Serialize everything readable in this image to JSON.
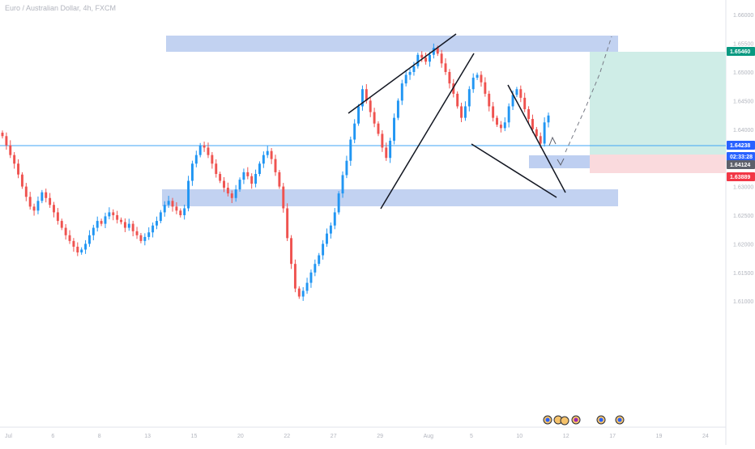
{
  "symbol_header": "Euro / Australian Dollar, 4h, FXCM",
  "chart_data": {
    "type": "candlestick",
    "title": "Euro / Australian Dollar, 4h, FXCM",
    "xlabel": "",
    "ylabel": "",
    "ylim": [
      1.588,
      1.662
    ],
    "x_ticks": [
      "Jul",
      "6",
      "8",
      "13",
      "15",
      "20",
      "22",
      "27",
      "29",
      "Aug",
      "5",
      "10",
      "12",
      "17",
      "19",
      "24"
    ],
    "y_ticks": [
      {
        "value": 1.66,
        "label": "1.66000"
      },
      {
        "value": 1.655,
        "label": "1.65500"
      },
      {
        "value": 1.65,
        "label": "1.65000"
      },
      {
        "value": 1.645,
        "label": "1.64500"
      },
      {
        "value": 1.64,
        "label": "1.64000"
      },
      {
        "value": 1.635,
        "label": "1.63500"
      },
      {
        "value": 1.63,
        "label": "1.63000"
      },
      {
        "value": 1.625,
        "label": "1.62500"
      },
      {
        "value": 1.62,
        "label": "1.62000"
      },
      {
        "value": 1.615,
        "label": "1.61500"
      },
      {
        "value": 1.61,
        "label": "1.61000"
      }
    ],
    "price_labels": [
      {
        "label": "1.65460",
        "color": "#089981",
        "value": 1.6546
      },
      {
        "label": "1.64238",
        "color": "#2962ff",
        "value": 1.64238
      },
      {
        "label": "02:33:28",
        "color": "#2962ff",
        "value": 1.6412
      },
      {
        "label": "1.64124",
        "color": "#5d606b",
        "value": 1.64124
      },
      {
        "label": "1.63889",
        "color": "#f23645",
        "value": 1.63889
      }
    ],
    "close_series": [
      1.6388,
      1.6372,
      1.6355,
      1.634,
      1.6321,
      1.63,
      1.6282,
      1.6265,
      1.6258,
      1.6275,
      1.629,
      1.628,
      1.6268,
      1.6255,
      1.624,
      1.6228,
      1.6215,
      1.6205,
      1.6195,
      1.6185,
      1.619,
      1.62,
      1.6215,
      1.6228,
      1.624,
      1.6235,
      1.6248,
      1.6255,
      1.625,
      1.6242,
      1.6238,
      1.6228,
      1.6235,
      1.6222,
      1.6215,
      1.6205,
      1.6212,
      1.622,
      1.6232,
      1.624,
      1.6255,
      1.6268,
      1.6275,
      1.6265,
      1.6258,
      1.625,
      1.6262,
      1.631,
      1.634,
      1.6355,
      1.6372,
      1.6368,
      1.6355,
      1.634,
      1.6322,
      1.631,
      1.6298,
      1.6288,
      1.628,
      1.6295,
      1.6312,
      1.6325,
      1.6318,
      1.6305,
      1.6322,
      1.634,
      1.6355,
      1.6362,
      1.6348,
      1.6325,
      1.63,
      1.6262,
      1.621,
      1.6165,
      1.6122,
      1.6108,
      1.6118,
      1.6132,
      1.615,
      1.6165,
      1.618,
      1.62,
      1.6218,
      1.6232,
      1.6255,
      1.6288,
      1.632,
      1.6345,
      1.6382,
      1.641,
      1.644,
      1.647,
      1.645,
      1.643,
      1.641,
      1.6392,
      1.6368,
      1.635,
      1.638,
      1.642,
      1.645,
      1.648,
      1.6495,
      1.65,
      1.651,
      1.653,
      1.6525,
      1.6518,
      1.653,
      1.6542,
      1.6532,
      1.6515,
      1.65,
      1.648,
      1.6462,
      1.644,
      1.642,
      1.644,
      1.647,
      1.649,
      1.6495,
      1.6482,
      1.6462,
      1.644,
      1.642,
      1.6408,
      1.6402,
      1.6412,
      1.644,
      1.646,
      1.647,
      1.6455,
      1.6435,
      1.6418,
      1.64,
      1.6388,
      1.6375,
      1.6412,
      1.6424
    ]
  }
}
